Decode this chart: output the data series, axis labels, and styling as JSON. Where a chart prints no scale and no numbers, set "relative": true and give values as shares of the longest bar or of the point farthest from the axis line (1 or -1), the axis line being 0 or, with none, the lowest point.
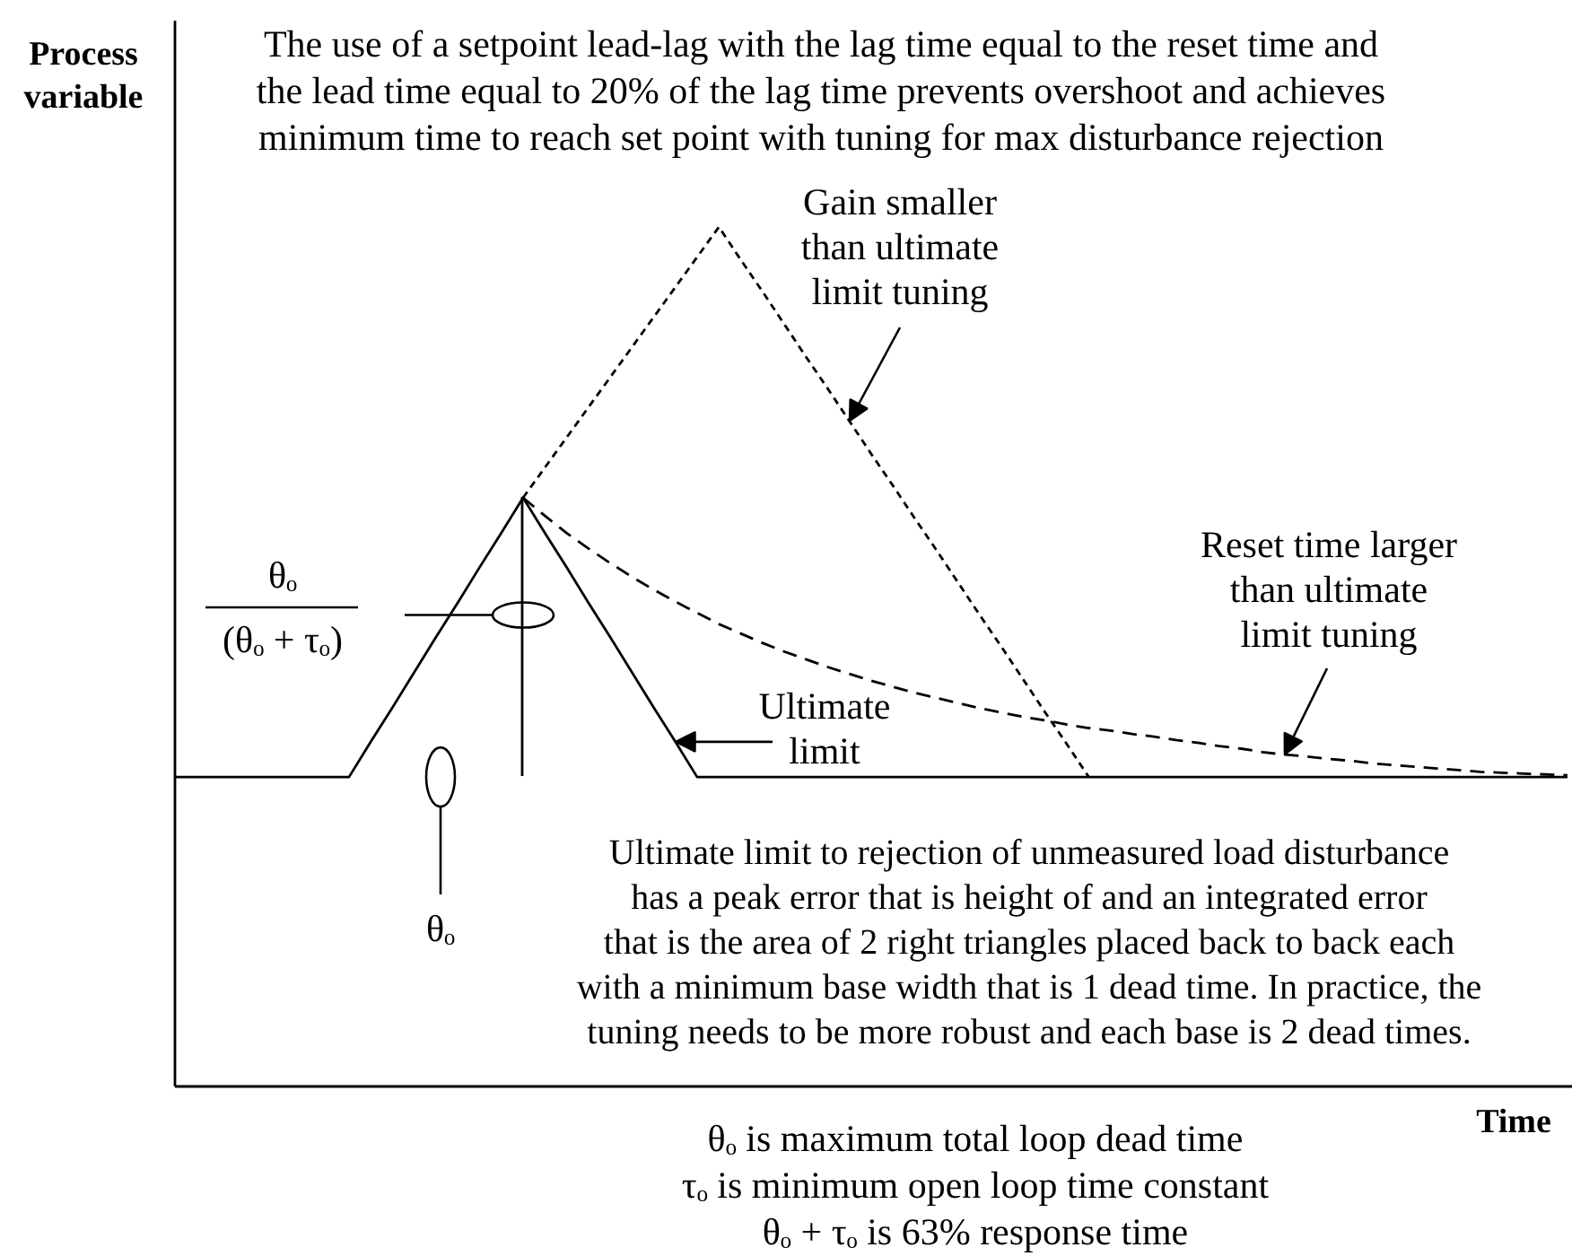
{
  "chart_data": {
    "type": "line",
    "title": "The use of a setpoint lead-lag with the lag time equal to the reset time and\nthe lead time equal to 20% of the lag time prevents overshoot and achieves\nminimum time to reach set point with tuning for max disturbance rejection",
    "xlabel": "Time",
    "ylabel": "Process\nvariable",
    "relative": true,
    "categories": [
      null,
      null,
      null,
      null,
      null,
      null,
      null,
      null,
      null,
      null,
      null,
      null,
      null,
      null,
      null,
      null,
      null,
      null,
      null,
      null,
      null,
      null,
      null,
      null,
      null,
      null,
      null,
      null,
      null,
      null,
      null,
      null,
      null,
      null,
      null,
      null,
      null,
      null,
      null,
      null,
      null,
      null,
      null,
      null,
      null,
      null,
      null,
      null,
      null,
      null,
      null,
      null,
      null,
      null,
      null,
      null,
      null,
      null,
      null,
      null,
      null,
      null,
      null,
      null,
      null
    ],
    "series": [
      {
        "name": "Ultimate\nlimit",
        "color": "#000000",
        "line_style": "solid",
        "values": [
          0.36,
          0.36,
          0.36,
          0.36,
          0.36,
          0.36,
          0.36,
          0.36,
          0.36,
          0.401,
          0.441,
          0.482,
          0.523,
          0.563,
          0.604,
          0.644,
          0.685,
          0.644,
          0.604,
          0.563,
          0.523,
          0.482,
          0.441,
          0.401,
          0.36,
          0.36,
          0.36,
          0.36,
          0.36,
          0.36,
          0.36,
          0.36,
          0.36,
          0.36,
          0.36,
          0.36,
          0.36,
          0.36,
          0.36,
          0.36,
          0.36,
          0.36,
          0.36,
          0.36,
          0.36,
          0.36,
          0.36,
          0.36,
          0.36,
          0.36,
          0.36,
          0.36,
          0.36,
          0.36,
          0.36,
          0.36,
          0.36,
          0.36,
          0.36,
          0.36,
          0.36,
          0.36,
          0.36,
          0.36,
          0.36
        ]
      },
      {
        "name": "Gain smaller\nthan ultimate\nlimit tuning",
        "color": "#000000",
        "line_style": "dotted",
        "values": [
          null,
          null,
          null,
          null,
          null,
          null,
          null,
          null,
          null,
          null,
          null,
          null,
          null,
          null,
          null,
          null,
          0.685,
          0.72,
          0.755,
          0.79,
          0.825,
          0.86,
          0.895,
          0.93,
          0.965,
          1.0,
          0.962,
          0.925,
          0.887,
          0.849,
          0.812,
          0.774,
          0.736,
          0.699,
          0.661,
          0.624,
          0.586,
          0.548,
          0.511,
          0.473,
          0.435,
          0.398,
          0.36,
          null,
          null,
          null,
          null,
          null,
          null,
          null,
          null,
          null,
          null,
          null,
          null,
          null,
          null,
          null,
          null,
          null,
          null,
          null,
          null,
          null,
          null
        ]
      },
      {
        "name": "Reset time larger\nthan ultimate\nlimit tuning",
        "color": "#000000",
        "line_style": "dashed",
        "values": [
          null,
          null,
          null,
          null,
          null,
          null,
          null,
          null,
          null,
          null,
          null,
          null,
          null,
          null,
          null,
          null,
          0.685,
          0.664,
          0.644,
          0.626,
          0.609,
          0.593,
          0.578,
          0.564,
          0.551,
          0.538,
          0.527,
          0.516,
          0.506,
          0.497,
          0.488,
          0.48,
          0.472,
          0.465,
          0.458,
          0.452,
          0.446,
          0.44,
          0.435,
          0.43,
          0.426,
          0.421,
          0.417,
          0.414,
          0.41,
          0.407,
          0.403,
          0.4,
          0.396,
          0.393,
          0.389,
          0.386,
          0.384,
          0.381,
          0.379,
          0.376,
          0.374,
          0.372,
          0.37,
          0.368,
          0.366,
          0.365,
          0.364,
          0.363,
          0.362
        ]
      }
    ],
    "annotations": [
      "θₒ\n(θₒ + τₒ)",
      "θₒ",
      "Ultimate limit to rejection of unmeasured load disturbance\nhas a peak error that is height of and an integrated error\nthat is the area of 2 right triangles placed back to back each\nwith a minimum base width that is 1 dead time. In practice, the\ntuning needs to be more robust and each base is 2 dead times.",
      "θₒ is maximum total loop dead time\nτₒ is minimum open loop time constant\nθₒ + τₒ is 63% response time"
    ]
  }
}
